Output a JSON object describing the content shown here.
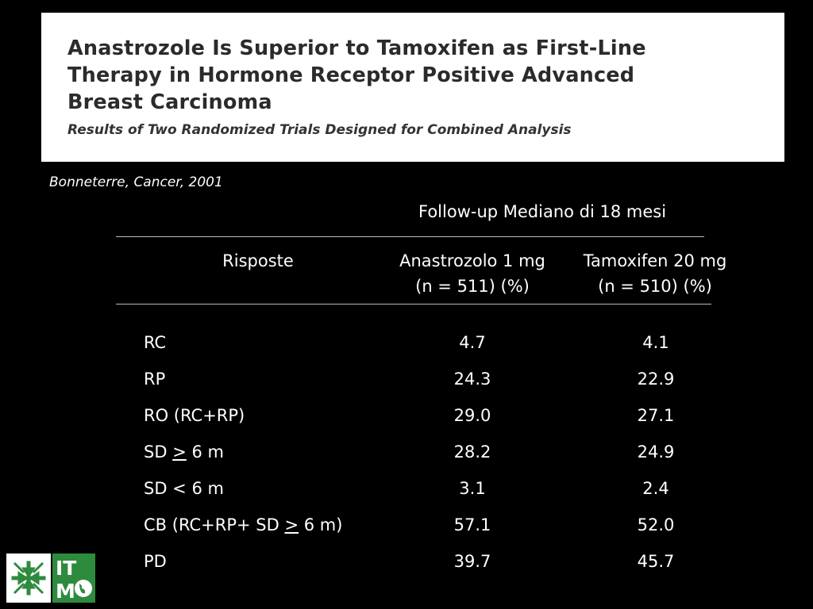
{
  "header": {
    "title_lines": [
      "Anastrozole Is Superior to Tamoxifen as First-Line",
      "Therapy in Hormone Receptor Positive Advanced",
      "Breast Carcinoma"
    ],
    "subtitle": "Results of Two Randomized Trials Designed for Combined Analysis"
  },
  "citation": "Bonneterre, Cancer, 2001",
  "table": {
    "followup": "Follow-up Mediano di 18 mesi",
    "columns": {
      "label": "Risposte",
      "ana_line1": "Anastrozolo 1 mg",
      "ana_line2": "(n = 511) (%)",
      "tam_line1": "Tamoxifen 20 mg",
      "tam_line2": "(n = 510) (%)"
    },
    "rows": [
      {
        "label_pre": "RC",
        "label_ge": "",
        "label_post": "",
        "ana": "4.7",
        "tam": "4.1"
      },
      {
        "label_pre": "RP",
        "label_ge": "",
        "label_post": "",
        "ana": "24.3",
        "tam": "22.9"
      },
      {
        "label_pre": "RO (RC+RP)",
        "label_ge": "",
        "label_post": "",
        "ana": "29.0",
        "tam": "27.1"
      },
      {
        "label_pre": "SD ",
        "label_ge": ">",
        "label_post": " 6 m",
        "ana": "28.2",
        "tam": "24.9"
      },
      {
        "label_pre": "SD < 6 m",
        "label_ge": "",
        "label_post": "",
        "ana": "3.1",
        "tam": "2.4"
      },
      {
        "label_pre": "CB (RC+RP+ SD ",
        "label_ge": ">",
        "label_post": " 6 m)",
        "ana": "57.1",
        "tam": "52.0"
      },
      {
        "label_pre": "PD",
        "label_ge": "",
        "label_post": "",
        "ana": "39.7",
        "tam": "45.7"
      }
    ]
  },
  "logo": {
    "icon": "green-arrows-logo-icon",
    "text": "ITMO",
    "text_top": "IT",
    "text_bottom": "M",
    "green": "#2e8b3e"
  }
}
